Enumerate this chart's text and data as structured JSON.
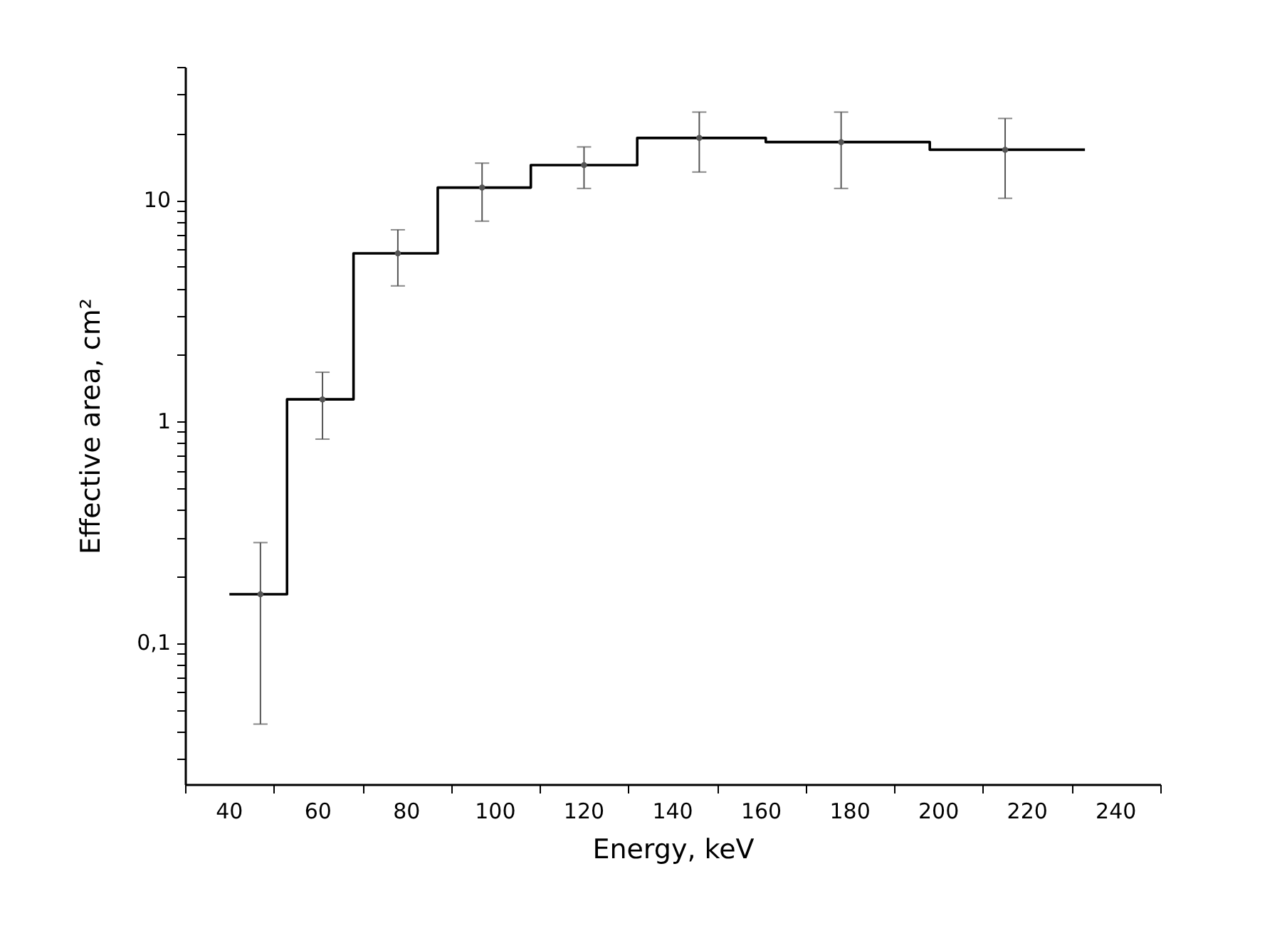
{
  "chart_data": {
    "type": "step",
    "xlabel": "Energy, keV",
    "ylabel": "Effective area, cm²",
    "series": [
      {
        "color": "#000000",
        "x": [
          40,
          53,
          68,
          87,
          108,
          132,
          161,
          198,
          233
        ],
        "values": [
          0.166,
          1.26,
          5.75,
          11.4,
          14.4,
          19.1,
          18.3,
          16.9,
          16.9
        ]
      },
      {
        "type": "scatter",
        "marker": "circle",
        "color": "#555555",
        "x": [
          47,
          61,
          78,
          97,
          120,
          146,
          178,
          215
        ],
        "values": [
          0.166,
          1.26,
          5.75,
          11.4,
          14.4,
          19.1,
          18.3,
          16.9
        ],
        "errors": [
          [
            0.043,
            0.284
          ],
          [
            0.833,
            1.67
          ],
          [
            4.1,
            7.35
          ],
          [
            8.04,
            14.7
          ],
          [
            11.3,
            17.4
          ],
          [
            13.4,
            25.0
          ],
          [
            11.3,
            25.0
          ],
          [
            10.2,
            23.4
          ]
        ]
      }
    ],
    "log": "y",
    "xlim": [
      30,
      250
    ],
    "xticks": [
      {
        "value": 30,
        "label": null
      },
      40,
      {
        "value": 50,
        "label": null
      },
      60,
      {
        "value": 70,
        "label": null
      },
      80,
      {
        "value": 90,
        "label": null
      },
      100,
      {
        "value": 110,
        "label": null
      },
      120,
      {
        "value": 130,
        "label": null
      },
      140,
      {
        "value": 150,
        "label": null
      },
      160,
      {
        "value": 170,
        "label": null
      },
      180,
      {
        "value": 190,
        "label": null
      },
      200,
      {
        "value": 210,
        "label": null
      },
      220,
      {
        "value": 230,
        "label": null
      },
      240,
      {
        "value": 250,
        "label": null
      }
    ],
    "ylim": [
      0.023,
      40
    ],
    "yticks": [
      {
        "value": 0.03,
        "label": null
      },
      {
        "value": 0.04,
        "label": null
      },
      {
        "value": 0.05,
        "label": null
      },
      {
        "value": 0.06,
        "label": null
      },
      {
        "value": 0.07,
        "label": null
      },
      {
        "value": 0.08,
        "label": null
      },
      {
        "value": 0.09,
        "label": null
      },
      {
        "value": 0.1,
        "label": "0,1"
      },
      {
        "value": 0.2,
        "label": null
      },
      {
        "value": 0.3,
        "label": null
      },
      {
        "value": 0.4,
        "label": null
      },
      {
        "value": 0.5,
        "label": null
      },
      {
        "value": 0.6,
        "label": null
      },
      {
        "value": 0.7,
        "label": null
      },
      {
        "value": 0.8,
        "label": null
      },
      {
        "value": 0.9,
        "label": null
      },
      1,
      {
        "value": 2,
        "label": null
      },
      {
        "value": 3,
        "label": null
      },
      {
        "value": 4,
        "label": null
      },
      {
        "value": 5,
        "label": null
      },
      {
        "value": 6,
        "label": null
      },
      {
        "value": 7,
        "label": null
      },
      {
        "value": 8,
        "label": null
      },
      {
        "value": 9,
        "label": null
      },
      10,
      {
        "value": 20,
        "label": null
      },
      {
        "value": 30,
        "label": null
      },
      {
        "value": 40,
        "label": null
      }
    ]
  }
}
